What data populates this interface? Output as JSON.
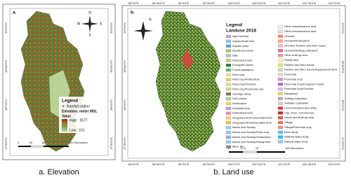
{
  "panel_a": {
    "label": "a.",
    "compass": {
      "n": "N",
      "w": "W",
      "e": "E",
      "s": "S"
    },
    "legend_title": "Legend",
    "rainfall": "Rainfall station",
    "elevation": "Elevation, meter MSL",
    "value": "Value",
    "high": "High : 2577",
    "low": "Low : 151",
    "scale": [
      "0",
      "30",
      "60",
      "120 Kilometers"
    ],
    "lat_labels": [
      "19°0'0\"N",
      "18°30'0\"N",
      "18°0'0\"N",
      "17°30'0\"N"
    ],
    "caption": "a. Elevation"
  },
  "panel_b": {
    "label": "b.",
    "north": "N",
    "legend_title": "Legend",
    "legend_subtitle": "Landuse 2018",
    "legend_col1": [
      "Agro-forestry",
      "Aquacultural land",
      "Aquatic plant",
      "Deciduous forest",
      "Dike",
      "Disturbed forest",
      "Evergreen forest",
      "Forest plantation",
      "Field crop",
      "Field crop/Horticulture",
      "Field crop/Orchard",
      "Field crop/Perennial crop",
      "Garbage dump",
      "Golf course",
      "Horticulture",
      "Industrial land",
      "Institutional land",
      "Integrated farm/ Diversified farm",
      "Integrated farm/Diversified farm",
      "Marsh and Swamp",
      "Marsh and Swamp/Field crop",
      "Marsh and Swamp/Horticulture",
      "Marsh and Swamp/Paddy field",
      "Mine, Pit"
    ],
    "legend_col2": [
      "Other miscellaneous land",
      "Other miscellaneous land",
      "Orchard",
      "Orchard/Horticulture",
      "Orchard/ Pasture and farm house",
      "Orchard/Shifting cultivation",
      "Other built-up land",
      "Paddy field",
      "Pasture and farm house",
      "Pasture and farm house/Aquacultural land",
      "Perennial",
      "Perennial crop",
      "Perennial crop/Evergreen forest",
      "Perennial crop/Orchard",
      "Rangeland",
      "Shifting cultivation",
      "Swidden cultivation",
      "Communication and utility",
      "City, Town, Commercial",
      "Urban and Built-up land",
      "Village",
      "Village/Perennial crop",
      "River Body",
      "Artificial water body",
      "Natural water body"
    ],
    "scale": [
      "0",
      "37.5",
      "75",
      "150 Kilometers"
    ],
    "lon_labels": [
      "98°0'0\"E",
      "98°30'0\"E",
      "99°0'0\"E",
      "99°30'0\"E",
      "100°0'0\"E",
      "100°30'0\"E",
      "101°0'0\"E",
      "101°30'0\"E",
      "102°0'0\"E"
    ],
    "lat_labels": [
      "19°0'0\"N",
      "18°30'0\"N",
      "18°0'0\"N",
      "17°30'0\"N"
    ],
    "caption": "b. Land use"
  }
}
